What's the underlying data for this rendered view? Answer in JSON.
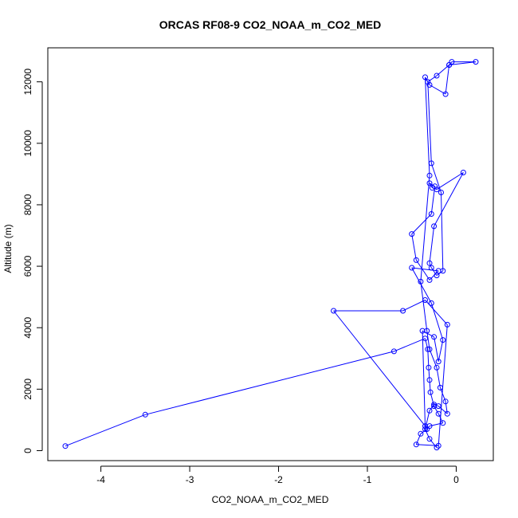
{
  "chart_data": {
    "type": "line",
    "title": "ORCAS RF08-9 CO2_NOAA_m_CO2_MED",
    "xlabel": "CO2_NOAA_m_CO2_MED",
    "ylabel": "Altitude (m)",
    "xlim": [
      -4.4,
      0.22
    ],
    "ylim": [
      90,
      12640
    ],
    "xticks": [
      -4,
      -3,
      -2,
      -1,
      0
    ],
    "yticks": [
      0,
      2000,
      4000,
      6000,
      8000,
      10000,
      12000
    ],
    "grid": false,
    "legend": "none",
    "line_color": "#0000ff",
    "marker": "open-circle",
    "series": [
      {
        "x": [
          -4.4,
          -3.5,
          -0.7,
          -0.35,
          -0.32,
          -0.31,
          -0.3,
          -0.29,
          -0.25,
          -0.2,
          -0.15,
          -0.3,
          -0.33,
          -0.4,
          -0.45,
          -0.2,
          -0.1,
          -0.35,
          -0.6,
          -1.38,
          -0.35,
          -0.38,
          -0.25,
          -0.2,
          -0.15,
          -0.28,
          -0.5,
          -0.2,
          -0.3,
          -0.45,
          -0.5,
          -0.28,
          -0.24,
          -0.3,
          -0.27,
          -0.22,
          0.08,
          -0.25,
          -0.3,
          -0.28,
          -0.22,
          -0.15,
          -0.17,
          -0.28,
          -0.32,
          -0.22,
          -0.08,
          0.22,
          -0.05,
          -0.08,
          -0.12,
          -0.3,
          -0.35,
          -0.3,
          -0.4,
          -0.33,
          -0.3,
          -0.22,
          -0.18,
          -0.12,
          -0.1,
          -0.2,
          -0.25,
          -0.3,
          -0.35,
          -0.3,
          -0.22
        ],
        "y": [
          150,
          1170,
          3230,
          3650,
          3300,
          2700,
          2300,
          1900,
          1450,
          1200,
          900,
          800,
          700,
          550,
          200,
          160,
          4100,
          4900,
          4550,
          4550,
          800,
          3900,
          3700,
          2900,
          3600,
          4800,
          5950,
          5850,
          5550,
          6200,
          7050,
          7700,
          8600,
          8700,
          8550,
          8500,
          9050,
          7300,
          6100,
          5950,
          5700,
          5850,
          8400,
          9350,
          12000,
          12200,
          12550,
          12650,
          12650,
          12550,
          11600,
          11900,
          12150,
          8950,
          5500,
          3900,
          3300,
          2700,
          2050,
          1600,
          1200,
          1450,
          1500,
          1300,
          700,
          380,
          100
        ]
      }
    ]
  }
}
